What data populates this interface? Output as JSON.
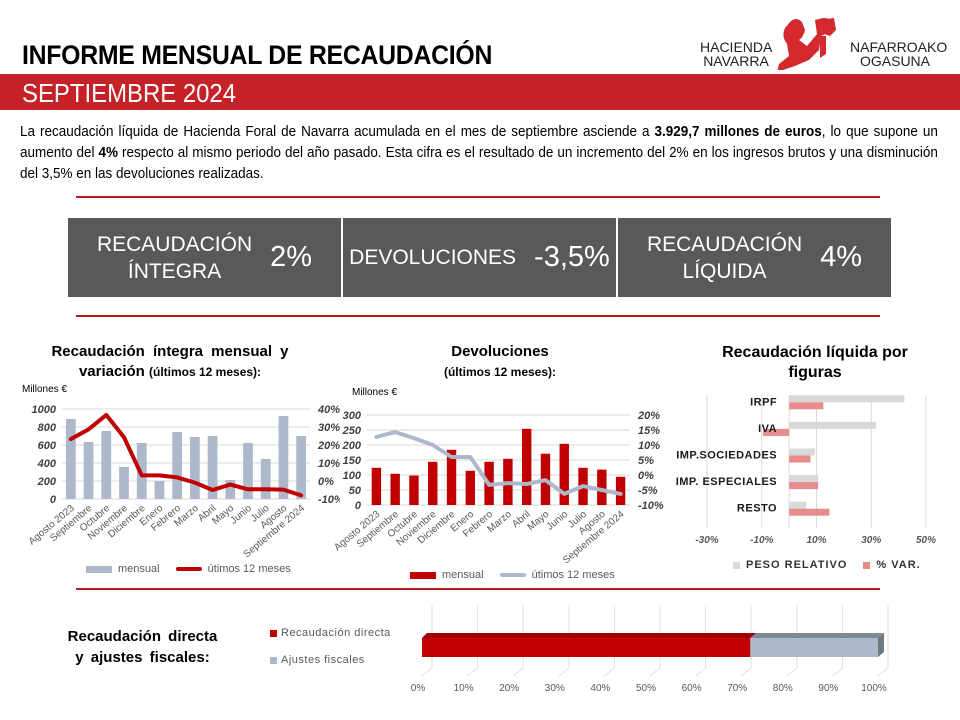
{
  "header": {
    "title": "INFORME MENSUAL DE RECAUDACIÓN",
    "period": "SEPTIEMBRE 2024",
    "logo": {
      "left_line1": "HACIENDA",
      "left_line2": "NAVARRA",
      "right_line1": "NAFARROAKO",
      "right_line2": "OGASUNA",
      "icon": "navarra-emblem-icon"
    }
  },
  "intro": {
    "part1": "La recaudación líquida de Hacienda Foral de Navarra acumulada en el mes de septiembre asciende a ",
    "bold1": "3.929,7 millones de euros",
    "part2": ", lo que supone un aumento del ",
    "bold2": "4%",
    "part3": " respecto al mismo periodo del año pasado. Esta cifra es el resultado de un incremento del 2% en los ingresos brutos y una disminución del 3,5% en las devoluciones realizadas."
  },
  "kpis": [
    {
      "label_line1": "RECAUDACIÓN",
      "label_line2": "ÍNTEGRA",
      "value": "2%"
    },
    {
      "label_line1": "DEVOLUCIONES",
      "label_line2": "",
      "value": "-3,5%"
    },
    {
      "label_line1": "RECAUDACIÓN",
      "label_line2": "LÍQUIDA",
      "value": "4%"
    }
  ],
  "colors": {
    "brand_red": "#c52127",
    "kpi_bg": "#595959",
    "bar_grey_blue": "#adb9ca",
    "bar_red": "#c00000",
    "pink": "#e88b8b",
    "light_grey": "#d9d9d9"
  },
  "chart_data": [
    {
      "id": "integra",
      "type": "bar+line",
      "title_line1": "Recaudación íntegra mensual y",
      "title_line2_bold": "variación",
      "title_line2_paren": "(últimos 12 meses):",
      "ylabel": "Millones €",
      "categories": [
        "Agosto 2023",
        "Septiembre",
        "Octubre",
        "Noviembre",
        "Diciembre",
        "Enero",
        "Febrero",
        "Marzo",
        "Abril",
        "Mayo",
        "Junio",
        "Julio",
        "Agosto",
        "Septiembre 2024"
      ],
      "series": [
        {
          "name": "mensual",
          "type": "bar",
          "axis": "left",
          "values": [
            889,
            633,
            756,
            356,
            622,
            200,
            744,
            689,
            700,
            211,
            622,
            444,
            922,
            700
          ]
        },
        {
          "name": "útimos 12 meses",
          "type": "line",
          "axis": "right",
          "values": [
            23.3,
            28.7,
            36.7,
            24.3,
            3.1,
            3.1,
            2.0,
            -0.9,
            -5.0,
            -2.0,
            -4.6,
            -4.6,
            -4.8,
            -8.0
          ]
        }
      ],
      "ylim": [
        0,
        1000
      ],
      "yticks": [
        "0",
        "200",
        "400",
        "600",
        "800",
        "1000"
      ],
      "y2lim": [
        -10,
        40
      ],
      "y2ticks": [
        "-10%",
        "0%",
        "10%",
        "20%",
        "30%",
        "40%"
      ],
      "grid": true,
      "legend": "bottom"
    },
    {
      "id": "devoluciones",
      "type": "bar+line",
      "title_line1": "Devoluciones",
      "title_line2_paren": "(últimos 12 meses):",
      "ylabel": "Millones €",
      "categories": [
        "Agosto 2023",
        "Septiembre",
        "Octubre",
        "Noviembre",
        "Diciembre",
        "Enero",
        "Febrero",
        "Marzo",
        "Abril",
        "Mayo",
        "Junio",
        "Julio",
        "Agosto",
        "Septiembre 2024"
      ],
      "series": [
        {
          "name": "mensual",
          "type": "bar",
          "axis": "left",
          "values": [
            124,
            104,
            98,
            144,
            184,
            114,
            144,
            154,
            254,
            171,
            204,
            124,
            118,
            94
          ]
        },
        {
          "name": "útimos 12 meses",
          "type": "line",
          "axis": "right",
          "values": [
            12.7,
            14.3,
            12.3,
            10.0,
            6.0,
            6.0,
            -3.3,
            -2.7,
            -3.0,
            -1.7,
            -6.3,
            -3.7,
            -5.0,
            -6.3
          ]
        }
      ],
      "ylim": [
        0,
        300
      ],
      "yticks": [
        "0",
        "50",
        "100",
        "150",
        "200",
        "250",
        "300"
      ],
      "y2lim": [
        -10,
        20
      ],
      "y2ticks": [
        "-10%",
        "-5%",
        "0%",
        "5%",
        "10%",
        "15%",
        "20%"
      ],
      "grid": true,
      "legend": "bottom"
    },
    {
      "id": "figuras",
      "type": "bar",
      "orientation": "horizontal",
      "title_line1": "Recaudación líquida por",
      "title_line2": "figuras",
      "categories": [
        "IRPF",
        "IVA",
        "IMP.SOCIEDADES",
        "IMP. ESPECIALES",
        "RESTO"
      ],
      "series": [
        {
          "name": "PESO RELATIVO",
          "values": [
            42.1,
            31.7,
            9.5,
            10.6,
            6.2
          ]
        },
        {
          "name": "% VAR.",
          "values": [
            12.5,
            -9.5,
            7.8,
            10.6,
            14.7
          ]
        }
      ],
      "xlim": [
        -30,
        50
      ],
      "xticks": [
        "-30%",
        "-10%",
        "10%",
        "30%",
        "50%"
      ],
      "grid": true,
      "legend": "bottom"
    },
    {
      "id": "directa-ajustes",
      "type": "bar",
      "orientation": "horizontal-stacked-100",
      "title_line1": "Recaudación directa",
      "title_line2": "y ajustes fiscales:",
      "series": [
        {
          "name": "Recaudación directa",
          "values": [
            72
          ]
        },
        {
          "name": "Ajustes fiscales",
          "values": [
            28
          ]
        }
      ],
      "xlim": [
        0,
        100
      ],
      "xticks": [
        "0%",
        "10%",
        "20%",
        "30%",
        "40%",
        "50%",
        "60%",
        "70%",
        "80%",
        "90%",
        "100%"
      ],
      "grid": true,
      "legend": "left"
    }
  ]
}
